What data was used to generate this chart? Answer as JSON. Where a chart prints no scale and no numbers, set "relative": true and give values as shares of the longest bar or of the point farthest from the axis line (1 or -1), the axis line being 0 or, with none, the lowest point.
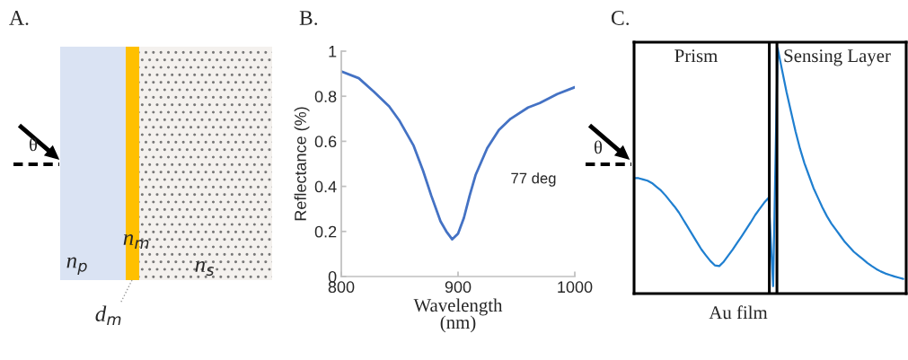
{
  "chart_data": [
    {
      "type": "other",
      "title": "A.",
      "annotations": [
        "θ",
        "n$_{p}$",
        "n$_{m}$",
        "n$_{s}$",
        "d$_{m}$"
      ]
    },
    {
      "type": "line",
      "title": "B.",
      "xlabel": "Wavelength\n(nm)",
      "ylabel": "Reflectance (%)",
      "annotations": [
        "77 deg"
      ],
      "x": [
        800,
        815,
        828,
        841,
        850,
        862,
        870,
        877,
        885,
        890,
        895,
        900,
        905,
        910,
        915,
        925,
        935,
        945,
        960,
        970,
        985,
        1000
      ],
      "series": [
        {
          "color": "#4472c4",
          "values": [
            0.91,
            0.88,
            0.82,
            0.755,
            0.69,
            0.58,
            0.47,
            0.36,
            0.245,
            0.2,
            0.165,
            0.19,
            0.26,
            0.36,
            0.45,
            0.57,
            0.65,
            0.7,
            0.75,
            0.77,
            0.81,
            0.84
          ]
        }
      ],
      "xlim": [
        800,
        1000
      ],
      "xticks": [
        800,
        900,
        1000
      ],
      "ylim": [
        0,
        1
      ],
      "yticks": [
        0,
        0.2,
        0.4,
        0.6,
        0.8,
        1
      ]
    },
    {
      "type": "line",
      "title": "C.",
      "relative": true,
      "annotations": [
        "θ",
        "Prism",
        "Sensing Layer",
        "Au film"
      ],
      "categories": [
        null,
        null,
        null,
        null,
        null,
        null,
        null,
        null,
        null,
        null,
        null,
        null,
        null,
        null,
        null,
        null,
        null,
        null,
        null,
        null,
        null,
        null,
        null,
        null,
        null,
        null,
        null,
        null,
        null,
        null,
        null,
        null,
        null,
        null,
        null,
        null,
        null,
        null,
        null,
        null,
        null,
        null,
        null,
        null,
        null,
        null,
        null,
        null,
        null,
        null,
        null,
        null,
        null,
        null,
        null,
        null,
        null,
        null,
        null,
        null,
        null
      ],
      "series": [
        {
          "color": "#1f7fd0",
          "values": [
            0.47,
            0.47,
            0.465,
            0.46,
            0.45,
            0.435,
            0.42,
            0.4,
            0.377,
            0.355,
            0.33,
            0.3,
            0.27,
            0.24,
            0.21,
            0.18,
            0.156,
            0.133,
            0.115,
            0.112,
            0.13,
            0.155,
            0.18,
            0.207,
            0.234,
            0.262,
            0.29,
            0.32,
            0.345,
            0.37,
            0.39,
            0.03,
            1.0,
            0.91,
            0.82,
            0.74,
            0.66,
            0.59,
            0.53,
            0.48,
            0.43,
            0.39,
            0.35,
            0.315,
            0.285,
            0.26,
            0.235,
            0.21,
            0.19,
            0.17,
            0.155,
            0.14,
            0.125,
            0.112,
            0.1,
            0.09,
            0.082,
            0.076,
            0.07,
            0.065,
            0.06
          ]
        }
      ]
    }
  ]
}
